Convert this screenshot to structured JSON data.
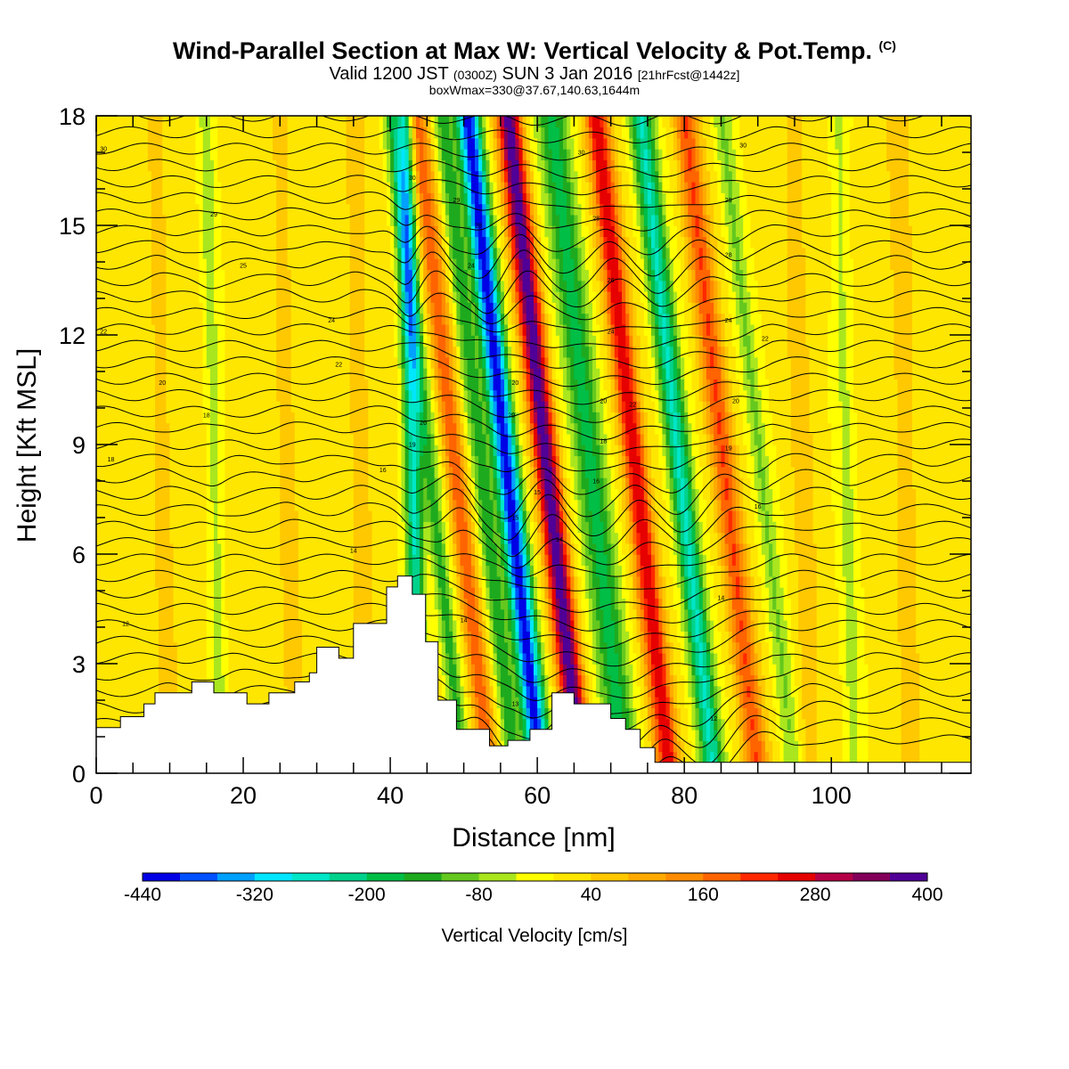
{
  "header": {
    "title": "Wind-Parallel Section at Max W: Vertical Velocity & Pot.Temp.",
    "copyright": "(C)",
    "valid_prefix": "Valid 1200 JST",
    "valid_utc": "(0300Z)",
    "valid_date": "SUN 3 Jan 2016",
    "forecast": "[21hrFcst@1442z]",
    "box_info": "boxWmax=330@37.67,140.63,1644m"
  },
  "chart_data": {
    "type": "heatmap",
    "title": "Wind-Parallel Section at Max W: Vertical Velocity & Pot.Temp.",
    "xlabel": "Distance [nm]",
    "ylabel": "Height [Kft MSL]",
    "xlim": [
      0,
      119
    ],
    "ylim": [
      0,
      18
    ],
    "x_ticks": [
      0,
      20,
      40,
      60,
      80,
      100
    ],
    "y_ticks": [
      0,
      3,
      6,
      9,
      12,
      15,
      18
    ],
    "colorbar": {
      "title": "Vertical Velocity [cm/s]",
      "levels": [
        -440,
        -400,
        -360,
        -320,
        -280,
        -240,
        -200,
        -160,
        -120,
        -80,
        -40,
        0,
        40,
        80,
        120,
        160,
        200,
        240,
        280,
        320,
        360,
        400
      ],
      "colors": [
        "#0000e6",
        "#0050ff",
        "#00a0ff",
        "#00e6ff",
        "#00e6c8",
        "#00d28c",
        "#00be46",
        "#1eaa1e",
        "#64c81e",
        "#aae61e",
        "#ffff00",
        "#ffe600",
        "#ffc800",
        "#ffaa00",
        "#ff8c00",
        "#ff6400",
        "#ff2800",
        "#e60000",
        "#b40046",
        "#82005a",
        "#500096"
      ],
      "tick_labels": [
        -440,
        -320,
        -200,
        -80,
        40,
        160,
        280,
        400
      ]
    },
    "velocity_bands": [
      {
        "x": 43,
        "w": 1.2,
        "v": -260
      },
      {
        "x": 45,
        "w": 1.2,
        "v": -140
      },
      {
        "x": 48.5,
        "w": 1.4,
        "v": 180
      },
      {
        "x": 52,
        "w": 1.3,
        "v": -160
      },
      {
        "x": 55.5,
        "w": 1.6,
        "v": -430
      },
      {
        "x": 61,
        "w": 1.6,
        "v": 380
      },
      {
        "x": 67,
        "w": 2.2,
        "v": -190
      },
      {
        "x": 73,
        "w": 1.6,
        "v": 270
      },
      {
        "x": 79,
        "w": 1.6,
        "v": -260
      },
      {
        "x": 85,
        "w": 1.6,
        "v": 190
      },
      {
        "x": 90,
        "w": 1.3,
        "v": -90
      },
      {
        "x": 16,
        "w": 1.0,
        "v": -70
      },
      {
        "x": 102,
        "w": 1.2,
        "v": -60
      },
      {
        "x": 9,
        "w": 1.2,
        "v": 60
      },
      {
        "x": 26,
        "w": 1.2,
        "v": 60
      },
      {
        "x": 36,
        "w": 1.4,
        "v": 60
      },
      {
        "x": 96,
        "w": 1.6,
        "v": 50
      },
      {
        "x": 110,
        "w": 1.5,
        "v": 60
      }
    ],
    "terrain": [
      {
        "x": 0,
        "h": 1.25
      },
      {
        "x": 3.3,
        "h": 1.55
      },
      {
        "x": 6.5,
        "h": 1.9
      },
      {
        "x": 8,
        "h": 2.2
      },
      {
        "x": 13,
        "h": 2.5
      },
      {
        "x": 16,
        "h": 2.2
      },
      {
        "x": 20.5,
        "h": 1.9
      },
      {
        "x": 23.5,
        "h": 2.2
      },
      {
        "x": 27,
        "h": 2.5
      },
      {
        "x": 29,
        "h": 2.75
      },
      {
        "x": 30,
        "h": 3.45
      },
      {
        "x": 33,
        "h": 3.15
      },
      {
        "x": 35,
        "h": 4.1
      },
      {
        "x": 39.5,
        "h": 5.1
      },
      {
        "x": 41,
        "h": 5.4
      },
      {
        "x": 43,
        "h": 4.9
      },
      {
        "x": 44.8,
        "h": 3.6
      },
      {
        "x": 46.5,
        "h": 2.0
      },
      {
        "x": 49,
        "h": 1.2
      },
      {
        "x": 53.5,
        "h": 0.75
      },
      {
        "x": 56,
        "h": 0.9
      },
      {
        "x": 59,
        "h": 1.2
      },
      {
        "x": 62,
        "h": 2.2
      },
      {
        "x": 65,
        "h": 1.9
      },
      {
        "x": 70,
        "h": 1.5
      },
      {
        "x": 72,
        "h": 1.2
      },
      {
        "x": 74,
        "h": 0.7
      },
      {
        "x": 76,
        "h": 0.3
      },
      {
        "x": 119,
        "h": 0.3
      }
    ],
    "isotherm_labels": [
      {
        "x": 1,
        "y": 17.1,
        "text": "30"
      },
      {
        "x": 43,
        "y": 16.3,
        "text": "30"
      },
      {
        "x": 66,
        "y": 17.0,
        "text": "30"
      },
      {
        "x": 88,
        "y": 17.2,
        "text": "30"
      },
      {
        "x": 16,
        "y": 15.3,
        "text": "29"
      },
      {
        "x": 49,
        "y": 15.7,
        "text": "29"
      },
      {
        "x": 86,
        "y": 15.7,
        "text": "29"
      },
      {
        "x": 52,
        "y": 15.0,
        "text": "28"
      },
      {
        "x": 68,
        "y": 15.2,
        "text": "28"
      },
      {
        "x": 86,
        "y": 14.2,
        "text": "28"
      },
      {
        "x": 20,
        "y": 13.9,
        "text": "25"
      },
      {
        "x": 51,
        "y": 13.9,
        "text": "24"
      },
      {
        "x": 70,
        "y": 13.5,
        "text": "26"
      },
      {
        "x": 32,
        "y": 12.4,
        "text": "24"
      },
      {
        "x": 70,
        "y": 12.1,
        "text": "24"
      },
      {
        "x": 86,
        "y": 12.4,
        "text": "24"
      },
      {
        "x": 1,
        "y": 12.1,
        "text": "22"
      },
      {
        "x": 91,
        "y": 11.9,
        "text": "22"
      },
      {
        "x": 33,
        "y": 11.2,
        "text": "22"
      },
      {
        "x": 9,
        "y": 10.7,
        "text": "20"
      },
      {
        "x": 57,
        "y": 10.7,
        "text": "20"
      },
      {
        "x": 69,
        "y": 10.2,
        "text": "20"
      },
      {
        "x": 73,
        "y": 10.1,
        "text": "22"
      },
      {
        "x": 87,
        "y": 10.2,
        "text": "20"
      },
      {
        "x": 15,
        "y": 9.8,
        "text": "18"
      },
      {
        "x": 56.5,
        "y": 9.8,
        "text": "20"
      },
      {
        "x": 44.5,
        "y": 9.6,
        "text": "20"
      },
      {
        "x": 43,
        "y": 9.0,
        "text": "19"
      },
      {
        "x": 69,
        "y": 9.1,
        "text": "18"
      },
      {
        "x": 86,
        "y": 8.9,
        "text": "19"
      },
      {
        "x": 2,
        "y": 8.6,
        "text": "18"
      },
      {
        "x": 39,
        "y": 8.3,
        "text": "16"
      },
      {
        "x": 68,
        "y": 8.0,
        "text": "16"
      },
      {
        "x": 60,
        "y": 7.7,
        "text": "15"
      },
      {
        "x": 57,
        "y": 7.0,
        "text": "15"
      },
      {
        "x": 90,
        "y": 7.3,
        "text": "16"
      },
      {
        "x": 35,
        "y": 6.1,
        "text": "14"
      },
      {
        "x": 63,
        "y": 6.4,
        "text": "14"
      },
      {
        "x": 4,
        "y": 4.1,
        "text": "12"
      },
      {
        "x": 50,
        "y": 4.2,
        "text": "14"
      },
      {
        "x": 85,
        "y": 4.8,
        "text": "14"
      },
      {
        "x": 57,
        "y": 1.9,
        "text": "13"
      },
      {
        "x": 84,
        "y": 1.5,
        "text": "12"
      }
    ]
  },
  "colorbar": {
    "title": "Vertical Velocity [cm/s]",
    "labels": [
      "-440",
      "-320",
      "-200",
      "-80",
      "40",
      "160",
      "280",
      "400"
    ]
  },
  "axes": {
    "xlabel": "Distance [nm]",
    "ylabel": "Height [Kft MSL]",
    "x_tick_labels": [
      "0",
      "20",
      "40",
      "60",
      "80",
      "100"
    ],
    "y_tick_labels": [
      "0",
      "3",
      "6",
      "9",
      "12",
      "15",
      "18"
    ]
  }
}
